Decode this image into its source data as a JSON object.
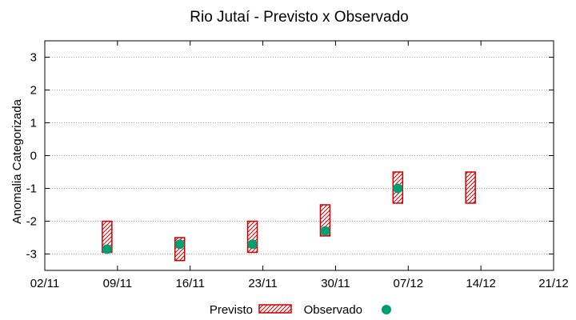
{
  "chart_data": {
    "type": "range-bar-scatter",
    "title": "Rio Jutaí - Previsto x Observado",
    "xlabel": "",
    "ylabel": "Anomalia Categorizada",
    "xlim_days": [
      0,
      49
    ],
    "ylim": [
      -3.5,
      3.5
    ],
    "y_ticks": [
      -3,
      -2,
      -1,
      0,
      1,
      2,
      3
    ],
    "x_tick_labels": [
      "02/11",
      "09/11",
      "16/11",
      "23/11",
      "30/11",
      "07/12",
      "14/12",
      "21/12"
    ],
    "x_tick_days": [
      0,
      7,
      14,
      21,
      28,
      35,
      42,
      49
    ],
    "grid": true,
    "legend_position": "bottom",
    "series": [
      {
        "name": "Previsto",
        "kind": "range",
        "points": [
          {
            "day": 6,
            "low": -2.95,
            "high": -2.0
          },
          {
            "day": 13,
            "low": -3.2,
            "high": -2.5
          },
          {
            "day": 20,
            "low": -2.95,
            "high": -2.0
          },
          {
            "day": 27,
            "low": -2.45,
            "high": -1.5
          },
          {
            "day": 34,
            "low": -1.45,
            "high": -0.5
          },
          {
            "day": 41,
            "low": -1.45,
            "high": -0.5
          }
        ]
      },
      {
        "name": "Observado",
        "kind": "scatter",
        "points": [
          {
            "day": 6,
            "value": -2.85
          },
          {
            "day": 13,
            "value": -2.7
          },
          {
            "day": 20,
            "value": -2.7
          },
          {
            "day": 27,
            "value": -2.3
          },
          {
            "day": 34,
            "value": -1.0
          }
        ]
      }
    ],
    "colors": {
      "previsto": "#cc0000",
      "observado": "#009e73",
      "grid": "#a0a0a0"
    }
  }
}
